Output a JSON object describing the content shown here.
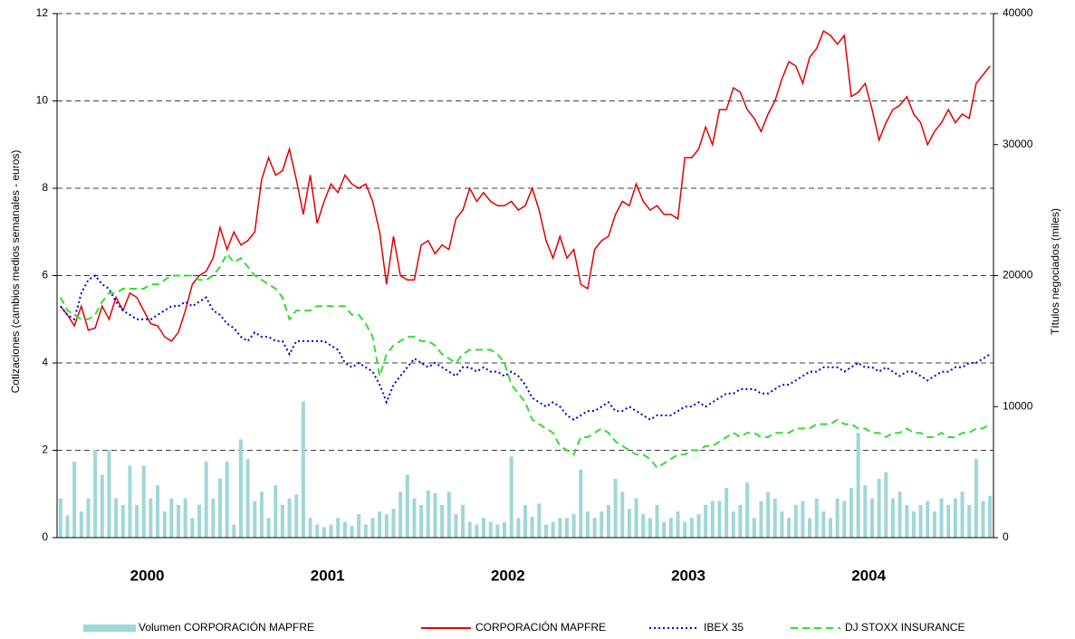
{
  "chart_data": {
    "type": "combo",
    "y_label": "Cotizaciones (cambios medios semanales  -  euros)",
    "y2_label": "Títulos negociados (miles)",
    "year_labels": [
      "2000",
      "2001",
      "2002",
      "2003",
      "2004"
    ],
    "ylim": [
      0,
      12
    ],
    "yticks": [
      0,
      2,
      4,
      6,
      8,
      10,
      12
    ],
    "y2lim": [
      0,
      40000
    ],
    "y2ticks": [
      0,
      10000,
      20000,
      30000,
      40000
    ],
    "grid": true,
    "series": [
      {
        "name": "Volumen CORPORACIÓN MAPFRE",
        "type": "bar",
        "axis": "y2",
        "color": "#9fd7d7",
        "values": [
          3000,
          1700,
          5800,
          2000,
          3000,
          6700,
          4800,
          6700,
          3000,
          2500,
          5500,
          2500,
          5500,
          3000,
          4000,
          2000,
          3000,
          2500,
          3000,
          1500,
          2500,
          5800,
          3000,
          4500,
          5800,
          1000,
          7500,
          6000,
          2800,
          3500,
          1500,
          4000,
          2500,
          3000,
          3300,
          10400,
          1500,
          1000,
          800,
          1000,
          1500,
          1200,
          900,
          1800,
          1000,
          1500,
          2000,
          1800,
          2200,
          3500,
          4800,
          3000,
          2500,
          3600,
          3400,
          2500,
          3500,
          1800,
          2500,
          1200,
          1000,
          1500,
          1200,
          1000,
          1200,
          6200,
          1500,
          2500,
          1600,
          2600,
          1000,
          1200,
          1500,
          1500,
          1800,
          5200,
          2000,
          1500,
          2000,
          2500,
          4500,
          3500,
          2200,
          3000,
          1800,
          1500,
          2500,
          1200,
          1500,
          2000,
          1200,
          1500,
          1800,
          2500,
          2800,
          2800,
          3800,
          2000,
          2500,
          4200,
          1500,
          2800,
          3500,
          3000,
          2000,
          1500,
          2500,
          2800,
          1500,
          3000,
          2000,
          1500,
          3000,
          2800,
          3800,
          8000,
          4000,
          3000,
          4500,
          5000,
          3000,
          3500,
          2500,
          2000,
          2500,
          2800,
          2000,
          3000,
          2500,
          3000,
          3500,
          2500,
          6000,
          2800,
          3200
        ]
      },
      {
        "name": "CORPORACIÓN MAPFRE",
        "type": "line",
        "style": "solid",
        "color": "#e00000",
        "values": [
          5.3,
          5.1,
          4.85,
          5.3,
          4.75,
          4.8,
          5.3,
          5.0,
          5.5,
          5.2,
          5.6,
          5.5,
          5.2,
          4.9,
          4.85,
          4.6,
          4.5,
          4.7,
          5.2,
          5.8,
          6.0,
          6.1,
          6.4,
          7.1,
          6.6,
          7.0,
          6.7,
          6.8,
          7.0,
          8.2,
          8.7,
          8.3,
          8.4,
          8.9,
          8.2,
          7.4,
          8.3,
          7.2,
          7.7,
          8.1,
          7.9,
          8.3,
          8.1,
          8.0,
          8.1,
          7.7,
          7.0,
          5.8,
          6.9,
          6.0,
          5.9,
          5.9,
          6.7,
          6.8,
          6.5,
          6.7,
          6.6,
          7.3,
          7.5,
          8.0,
          7.7,
          7.9,
          7.7,
          7.6,
          7.6,
          7.7,
          7.5,
          7.6,
          8.0,
          7.5,
          6.8,
          6.4,
          6.9,
          6.4,
          6.6,
          5.8,
          5.7,
          6.6,
          6.8,
          6.9,
          7.4,
          7.7,
          7.6,
          8.1,
          7.7,
          7.5,
          7.6,
          7.4,
          7.4,
          7.3,
          8.7,
          8.7,
          8.9,
          9.4,
          9.0,
          9.8,
          9.8,
          10.3,
          10.2,
          9.8,
          9.6,
          9.3,
          9.7,
          10.0,
          10.5,
          10.9,
          10.8,
          10.4,
          11.0,
          11.2,
          11.6,
          11.5,
          11.3,
          11.5,
          10.1,
          10.2,
          10.4,
          9.8,
          9.1,
          9.5,
          9.8,
          9.9,
          10.1,
          9.7,
          9.5,
          9.0,
          9.3,
          9.5,
          9.8,
          9.5,
          9.7,
          9.6,
          10.4,
          10.6,
          10.8
        ]
      },
      {
        "name": "IBEX 35",
        "type": "line",
        "style": "dotted",
        "color": "#0000cc",
        "values": [
          5.3,
          5.1,
          5.0,
          5.6,
          5.9,
          6.0,
          5.8,
          5.7,
          5.4,
          5.2,
          5.1,
          5.0,
          5.0,
          5.0,
          5.1,
          5.2,
          5.3,
          5.3,
          5.4,
          5.3,
          5.4,
          5.5,
          5.2,
          5.1,
          4.9,
          4.8,
          4.6,
          4.5,
          4.7,
          4.6,
          4.6,
          4.5,
          4.5,
          4.2,
          4.5,
          4.5,
          4.5,
          4.5,
          4.5,
          4.4,
          4.3,
          4.0,
          3.9,
          4.0,
          3.9,
          3.8,
          3.5,
          3.1,
          3.5,
          3.7,
          3.9,
          4.1,
          4.0,
          3.9,
          4.0,
          3.9,
          3.8,
          3.7,
          3.9,
          3.9,
          3.8,
          3.9,
          3.8,
          3.8,
          3.7,
          3.8,
          3.7,
          3.5,
          3.2,
          3.1,
          3.0,
          3.1,
          3.0,
          2.8,
          2.7,
          2.8,
          2.9,
          2.9,
          3.0,
          3.1,
          2.9,
          2.9,
          3.0,
          2.9,
          2.8,
          2.7,
          2.8,
          2.8,
          2.8,
          2.9,
          3.0,
          3.0,
          3.1,
          3.0,
          3.1,
          3.2,
          3.3,
          3.3,
          3.4,
          3.4,
          3.4,
          3.3,
          3.3,
          3.4,
          3.5,
          3.5,
          3.6,
          3.7,
          3.8,
          3.8,
          3.9,
          3.9,
          3.9,
          3.8,
          3.9,
          4.0,
          3.9,
          3.9,
          3.8,
          3.9,
          3.8,
          3.7,
          3.8,
          3.8,
          3.7,
          3.6,
          3.7,
          3.8,
          3.8,
          3.9,
          3.9,
          4.0,
          4.0,
          4.1,
          4.2
        ]
      },
      {
        "name": "DJ STOXX INSURANCE",
        "type": "line",
        "style": "dashed",
        "color": "#33dd33",
        "values": [
          5.5,
          5.2,
          5.1,
          5.0,
          5.0,
          5.1,
          5.4,
          5.6,
          5.6,
          5.7,
          5.7,
          5.7,
          5.7,
          5.8,
          5.8,
          5.9,
          6.0,
          6.0,
          6.0,
          6.0,
          5.9,
          5.9,
          6.0,
          6.2,
          6.5,
          6.3,
          6.4,
          6.2,
          6.0,
          5.9,
          5.8,
          5.7,
          5.5,
          5.0,
          5.2,
          5.2,
          5.2,
          5.3,
          5.3,
          5.3,
          5.3,
          5.3,
          5.1,
          5.1,
          4.9,
          4.6,
          3.7,
          4.2,
          4.4,
          4.5,
          4.6,
          4.6,
          4.5,
          4.5,
          4.4,
          4.2,
          4.1,
          4.0,
          4.2,
          4.3,
          4.3,
          4.3,
          4.3,
          4.2,
          4.0,
          3.5,
          3.3,
          3.1,
          2.7,
          2.6,
          2.5,
          2.4,
          2.1,
          2.0,
          1.9,
          2.3,
          2.3,
          2.4,
          2.5,
          2.4,
          2.2,
          2.1,
          2.0,
          1.9,
          1.9,
          1.8,
          1.6,
          1.7,
          1.8,
          1.9,
          1.9,
          2.0,
          2.0,
          2.1,
          2.1,
          2.2,
          2.3,
          2.4,
          2.3,
          2.4,
          2.4,
          2.3,
          2.3,
          2.4,
          2.4,
          2.4,
          2.5,
          2.5,
          2.5,
          2.6,
          2.6,
          2.6,
          2.7,
          2.6,
          2.6,
          2.5,
          2.5,
          2.4,
          2.4,
          2.3,
          2.4,
          2.4,
          2.5,
          2.4,
          2.4,
          2.3,
          2.3,
          2.4,
          2.3,
          2.3,
          2.4,
          2.4,
          2.5,
          2.5,
          2.6
        ]
      }
    ]
  }
}
